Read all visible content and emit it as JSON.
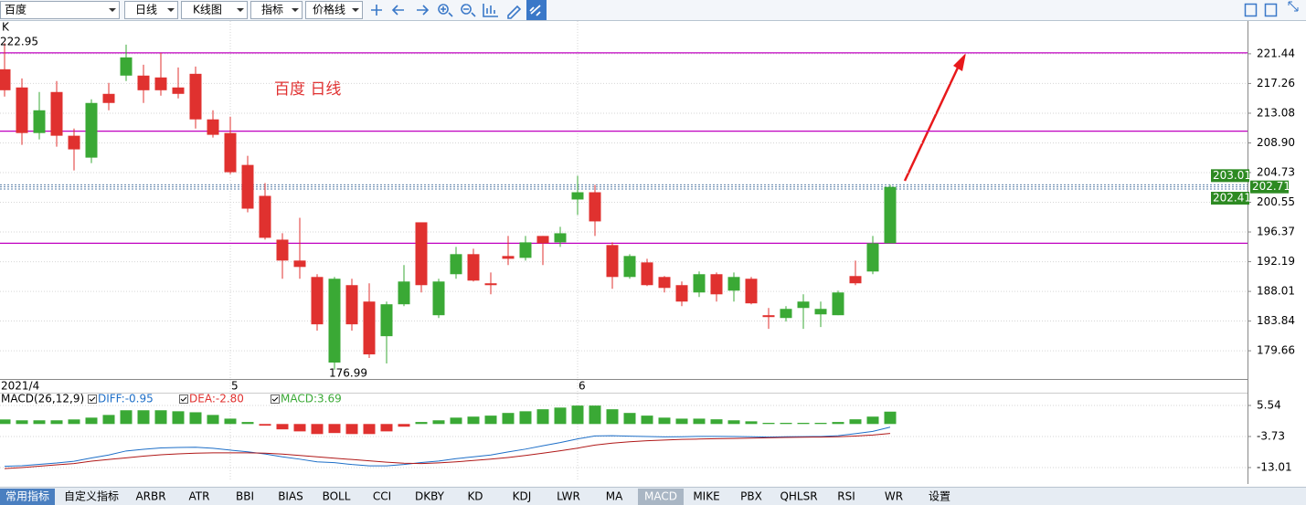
{
  "toolbar": {
    "dropdowns": [
      "百度",
      "日线",
      "K线图",
      "指标",
      "价格线"
    ]
  },
  "chart_data": [
    {
      "type": "candlestick",
      "title": "K",
      "annotation": "百度 日线",
      "categories": [
        "2021/4",
        null,
        null,
        null,
        null,
        null,
        null,
        null,
        null,
        null,
        null,
        null,
        null,
        "5",
        null,
        null,
        null,
        null,
        null,
        null,
        null,
        null,
        null,
        null,
        null,
        null,
        null,
        null,
        null,
        null,
        null,
        null,
        null,
        "6",
        null,
        null,
        null,
        null,
        null,
        null,
        null,
        null,
        null,
        null,
        null,
        null,
        null,
        null,
        null,
        null,
        null,
        null
      ],
      "open": [
        219.26,
        216.7,
        210.29,
        216.06,
        209.91,
        206.83,
        215.8,
        218.37,
        218.37,
        218.11,
        216.7,
        218.62,
        212.21,
        210.29,
        205.8,
        201.45,
        195.29,
        192.35,
        190.04,
        178.0,
        188.89,
        186.58,
        181.71,
        186.2,
        197.73,
        184.66,
        190.43,
        193.25,
        189.15,
        192.99,
        192.73,
        195.81,
        194.91,
        200.94,
        201.96,
        194.53,
        190.04,
        192.09,
        190.04,
        188.89,
        187.86,
        190.43,
        188.12,
        189.79,
        184.66,
        184.27,
        185.68,
        184.78,
        184.66,
        190.17,
        190.81,
        194.78
      ],
      "high": [
        222.95,
        217.98,
        216.06,
        217.6,
        210.93,
        215.03,
        217.34,
        222.72,
        219.9,
        221.57,
        219.52,
        219.64,
        213.49,
        212.6,
        207.09,
        203.24,
        196.19,
        198.37,
        190.43,
        190.04,
        189.79,
        189.15,
        186.58,
        191.71,
        197.73,
        189.79,
        194.27,
        194.01,
        190.68,
        195.81,
        195.81,
        195.81,
        197.1,
        204.27,
        202.99,
        194.91,
        193.25,
        192.6,
        190.17,
        189.4,
        190.81,
        190.68,
        190.68,
        190.04,
        185.68,
        185.94,
        187.6,
        186.58,
        188.12,
        192.35,
        195.81,
        203.01
      ],
      "low": [
        215.42,
        208.62,
        209.4,
        208.37,
        205.03,
        206.06,
        213.49,
        217.6,
        214.52,
        215.55,
        215.16,
        210.93,
        209.65,
        204.52,
        199.14,
        195.29,
        189.79,
        189.79,
        182.48,
        176.99,
        182.48,
        178.64,
        177.87,
        185.94,
        187.86,
        184.27,
        189.79,
        189.4,
        187.6,
        191.71,
        192.35,
        191.71,
        194.27,
        198.76,
        195.81,
        188.37,
        189.79,
        188.76,
        187.86,
        185.94,
        187.22,
        186.58,
        186.58,
        186.2,
        182.74,
        183.76,
        182.74,
        182.99,
        184.66,
        188.89,
        190.43,
        194.78
      ],
      "close": [
        216.31,
        210.29,
        213.49,
        209.91,
        207.99,
        214.52,
        214.52,
        220.93,
        216.31,
        216.31,
        215.8,
        212.21,
        210.04,
        204.78,
        199.65,
        195.55,
        192.35,
        191.45,
        183.38,
        189.79,
        183.38,
        179.15,
        186.2,
        189.4,
        188.89,
        189.4,
        193.25,
        189.53,
        188.89,
        192.6,
        194.91,
        194.78,
        196.19,
        201.96,
        197.86,
        190.04,
        192.99,
        188.89,
        188.5,
        186.58,
        190.43,
        187.6,
        190.04,
        186.33,
        184.4,
        185.55,
        186.58,
        185.55,
        187.86,
        189.15,
        194.78,
        202.71
      ],
      "up_color": "#3aa935",
      "down_color": "#e0312f",
      "ylim": [
        175.69,
        226.05
      ],
      "yticks": [
        221.44,
        217.26,
        213.08,
        {
          "value": 208.9,
          "label": "208.90"
        },
        204.73,
        200.55,
        196.37,
        192.19,
        188.01,
        183.84,
        179.66
      ],
      "hlines": [
        221.57,
        210.55,
        194.78
      ],
      "hline_color": "#c000c0",
      "price_tags": [
        203.01,
        202.71,
        202.41
      ],
      "grid": true
    },
    {
      "type": "macd",
      "title": "MACD(26,12,9)",
      "ylim": [
        -16.55,
        9.35
      ],
      "yticks": [
        5.54,
        -3.73,
        -13.01
      ],
      "histogram": {
        "name": "MACD:3.69",
        "up_color": "#3aa935",
        "down_color": "#e0312f",
        "values": [
          1.36,
          1.1,
          1.1,
          1.1,
          1.36,
          1.9,
          2.7,
          4.1,
          4.1,
          4.1,
          3.8,
          3.5,
          2.7,
          1.6,
          0.6,
          -0.5,
          -1.6,
          -2.2,
          -3.0,
          -2.7,
          -3.0,
          -3.0,
          -2.2,
          -0.8,
          0.6,
          1.1,
          1.9,
          2.2,
          2.5,
          3.3,
          3.8,
          4.4,
          4.9,
          5.5,
          5.5,
          4.4,
          3.3,
          2.5,
          1.9,
          1.6,
          1.6,
          1.4,
          1.1,
          0.8,
          0.35,
          0.35,
          0.35,
          0.35,
          0.6,
          1.4,
          2.2,
          3.69
        ]
      },
      "series": [
        {
          "name": "DIFF:-0.95",
          "color": "#1e6fc8",
          "values": [
            -12.62,
            -12.45,
            -12.05,
            -11.65,
            -11.12,
            -10.15,
            -9.25,
            -8.05,
            -7.55,
            -7.15,
            -7.0,
            -6.95,
            -7.25,
            -7.8,
            -8.3,
            -8.95,
            -9.8,
            -10.5,
            -11.3,
            -11.55,
            -12.1,
            -12.5,
            -12.5,
            -12.1,
            -11.5,
            -11.05,
            -10.35,
            -9.8,
            -9.25,
            -8.35,
            -7.5,
            -6.5,
            -5.55,
            -4.45,
            -3.55,
            -3.5,
            -3.65,
            -3.75,
            -3.85,
            -3.8,
            -3.7,
            -3.7,
            -3.75,
            -3.8,
            -3.92,
            -3.82,
            -3.77,
            -3.72,
            -3.5,
            -2.9,
            -2.2,
            -0.95
          ]
        },
        {
          "name": "DEA:-2.80",
          "color": "#b01818",
          "values": [
            -13.3,
            -13.0,
            -12.6,
            -12.2,
            -11.8,
            -11.1,
            -10.6,
            -10.1,
            -9.6,
            -9.2,
            -8.9,
            -8.7,
            -8.6,
            -8.6,
            -8.6,
            -8.7,
            -9.0,
            -9.4,
            -9.8,
            -10.2,
            -10.6,
            -11.0,
            -11.4,
            -11.7,
            -11.8,
            -11.6,
            -11.3,
            -10.9,
            -10.5,
            -10.0,
            -9.4,
            -8.7,
            -8.0,
            -7.2,
            -6.3,
            -5.7,
            -5.3,
            -5.0,
            -4.8,
            -4.6,
            -4.5,
            -4.4,
            -4.3,
            -4.2,
            -4.1,
            -4.0,
            -3.95,
            -3.9,
            -3.8,
            -3.6,
            -3.3,
            -2.8
          ]
        }
      ]
    }
  ],
  "tabs": {
    "items": [
      "常用指标",
      "自定义指标",
      "ARBR",
      "ATR",
      "BBI",
      "BIAS",
      "BOLL",
      "CCI",
      "DKBY",
      "KD",
      "KDJ",
      "LWR",
      "MA",
      "MACD",
      "MIKE",
      "PBX",
      "QHLSR",
      "RSI",
      "WR",
      "设置"
    ]
  }
}
